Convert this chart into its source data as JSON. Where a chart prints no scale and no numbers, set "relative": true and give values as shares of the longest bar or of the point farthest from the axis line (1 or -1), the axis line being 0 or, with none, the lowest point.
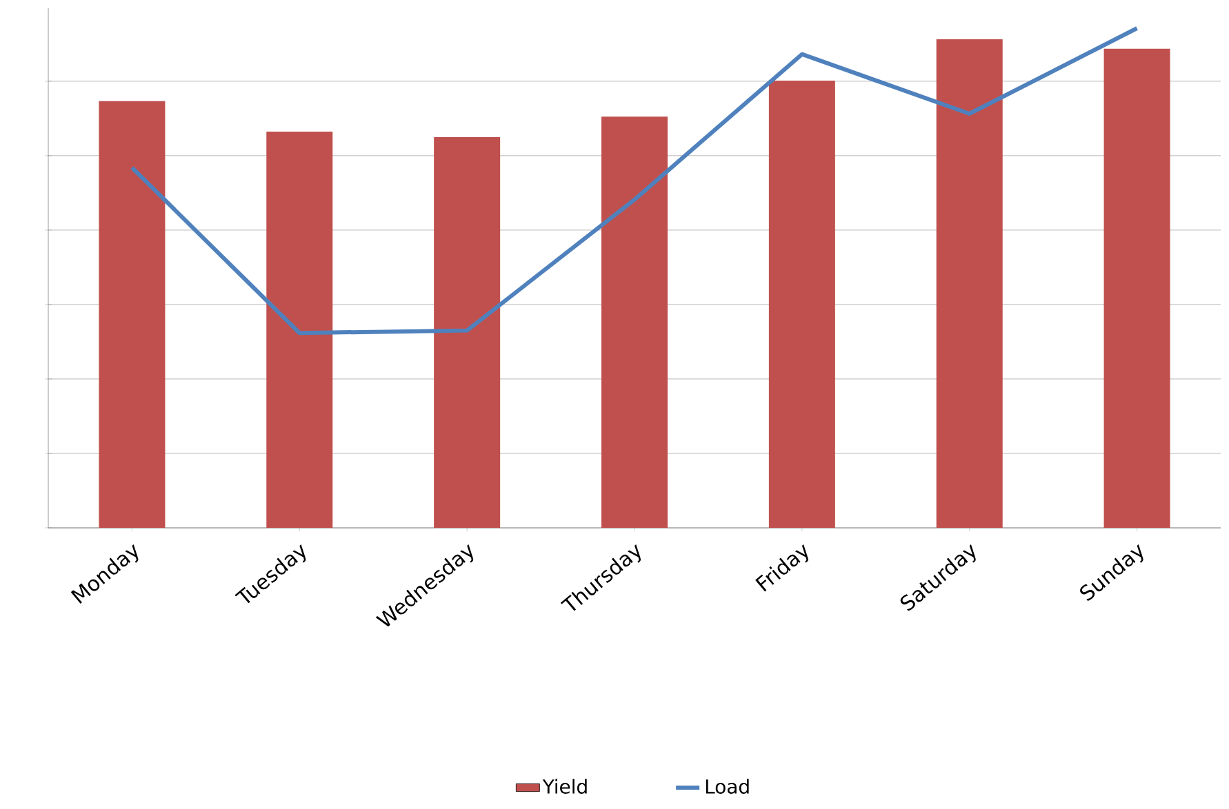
{
  "chart_data": {
    "type": "bar",
    "relative": true,
    "grid": "y",
    "legend": "bottom",
    "categories": [
      "Monday",
      "Tuesday",
      "Wednesday",
      "Thursday",
      "Friday",
      "Saturday",
      "Sunday"
    ],
    "series": [
      {
        "name": "Yield",
        "color": "#c0504d",
        "values": [
          0.854,
          0.793,
          0.782,
          0.823,
          0.895,
          0.978,
          0.959
        ]
      },
      {
        "name": "Load",
        "type": "line",
        "color": "#4f81bd",
        "values": [
          0.721,
          0.39,
          0.395,
          0.657,
          0.948,
          0.829,
          1.0
        ]
      }
    ]
  }
}
